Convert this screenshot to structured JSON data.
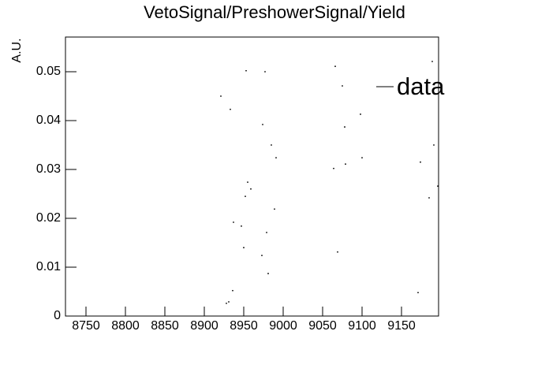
{
  "chart_data": {
    "type": "scatter",
    "title": "VetoSignal/PreshowerSignal/Yield",
    "y_label": "A.U.",
    "xlim": [
      8724,
      9197
    ],
    "xticks": [
      8750,
      8800,
      8850,
      8900,
      8950,
      9000,
      9050,
      9100,
      9150
    ],
    "ylim": [
      0,
      0.0571
    ],
    "yticks": [
      0,
      0.01,
      0.02,
      0.03,
      0.04,
      0.05
    ],
    "legend_position": "upper right",
    "series": [
      {
        "name": "data",
        "color": "#000000",
        "x": [
          8921,
          8933,
          8953,
          8977,
          8974,
          8985,
          8991,
          8955,
          8959,
          8952,
          8937,
          8947,
          8989,
          8979,
          8950,
          8973,
          8981,
          8936,
          8931,
          8928,
          9066,
          9075,
          9078,
          9098,
          9064,
          9079,
          9100,
          9069,
          9189,
          9191,
          9174,
          9185,
          9196,
          9171
        ],
        "values": [
          0.045,
          0.0423,
          0.0502,
          0.05,
          0.0392,
          0.035,
          0.0324,
          0.0274,
          0.026,
          0.0245,
          0.0192,
          0.0184,
          0.0219,
          0.0171,
          0.014,
          0.0124,
          0.0087,
          0.0052,
          0.0029,
          0.0026,
          0.0511,
          0.0471,
          0.0387,
          0.0413,
          0.0302,
          0.0311,
          0.0324,
          0.0131,
          0.0521,
          0.035,
          0.0315,
          0.0242,
          0.0266,
          0.0048
        ]
      }
    ]
  }
}
